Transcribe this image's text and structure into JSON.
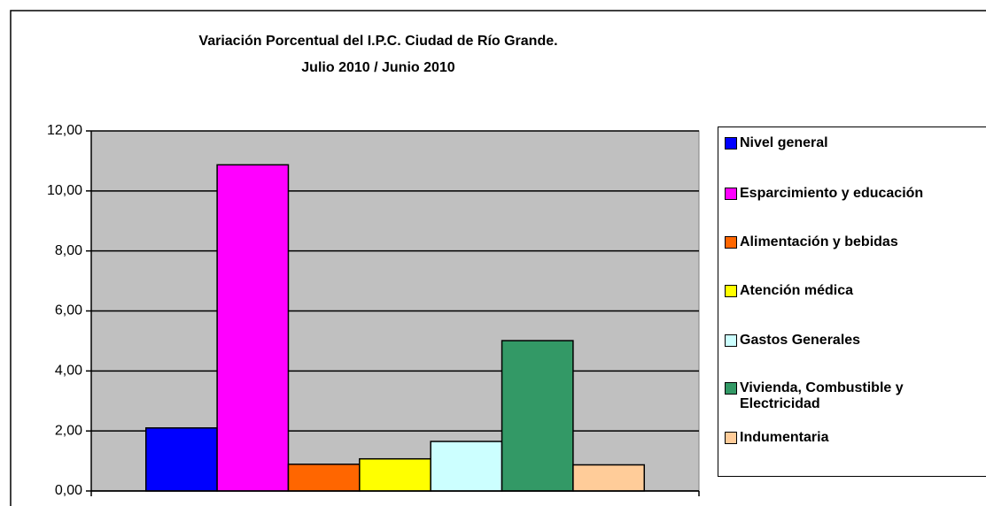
{
  "chart_data": {
    "type": "bar",
    "title": "Variación Porcentual del I.P.C. Ciudad de Río Grande.",
    "subtitle": "Julio 2010 / Junio 2010",
    "categories": [
      null
    ],
    "series": [
      {
        "name": "Nivel general",
        "color": "#0000ff",
        "values": [
          2.1
        ]
      },
      {
        "name": "Esparcimiento y educación",
        "color": "#ff00ff",
        "values": [
          10.87
        ]
      },
      {
        "name": "Alimentación y bebidas",
        "color": "#ff6600",
        "values": [
          0.89
        ]
      },
      {
        "name": "Atención médica",
        "color": "#ffff00",
        "values": [
          1.07
        ]
      },
      {
        "name": "Gastos Generales",
        "color": "#ccffff",
        "values": [
          1.65
        ]
      },
      {
        "name": "Vivienda, Combustible y Electricidad",
        "color": "#339966",
        "values": [
          5.01
        ]
      },
      {
        "name": "Indumentaria",
        "color": "#ffcc99",
        "values": [
          0.87
        ]
      }
    ],
    "ylim": [
      0,
      12
    ],
    "yticks": [
      {
        "value": 0,
        "label": "0,00"
      },
      {
        "value": 2,
        "label": "2,00"
      },
      {
        "value": 4,
        "label": "4,00"
      },
      {
        "value": 6,
        "label": "6,00"
      },
      {
        "value": 8,
        "label": "8,00"
      },
      {
        "value": 10,
        "label": "10,00"
      },
      {
        "value": 12,
        "label": "12,00"
      }
    ],
    "grid": true,
    "plot_background": "#c0c0c0",
    "legend": "right"
  }
}
